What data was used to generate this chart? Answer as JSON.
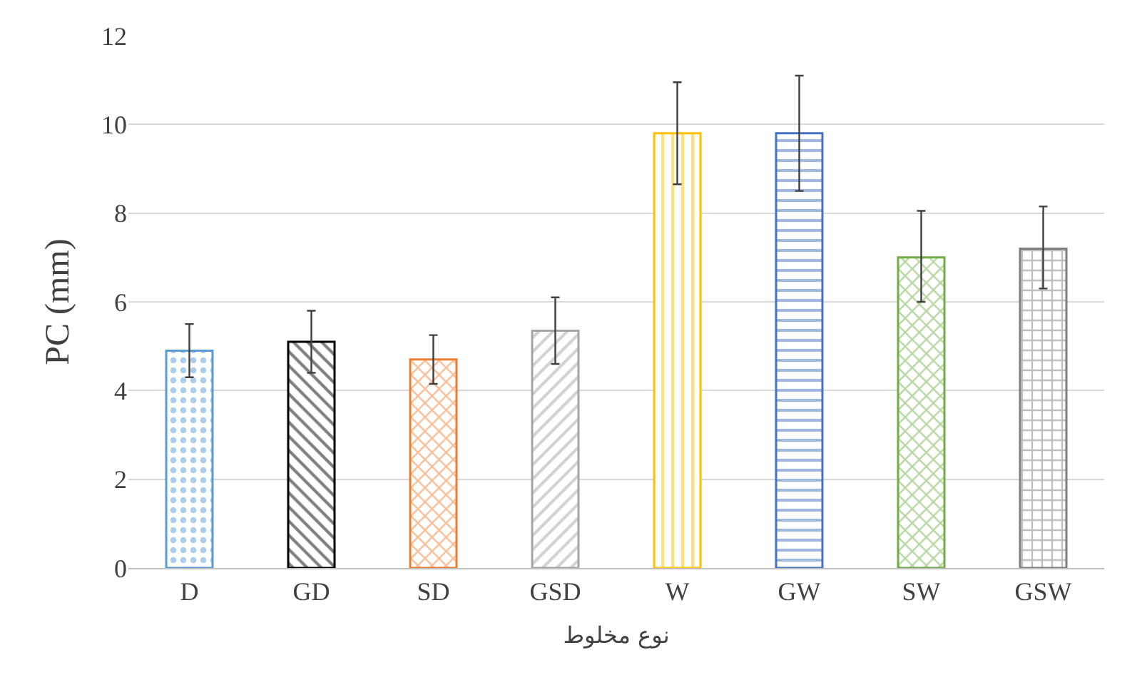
{
  "chart_data": {
    "type": "bar",
    "xlabel": "نوع مخلوط",
    "ylabel": "PC (mm)",
    "categories": [
      "D",
      "GD",
      "SD",
      "GSD",
      "W",
      "GW",
      "SW",
      "GSW"
    ],
    "values": [
      4.9,
      5.1,
      4.7,
      5.35,
      9.8,
      9.8,
      7.0,
      7.2
    ],
    "errors": [
      [
        4.3,
        5.5
      ],
      [
        4.4,
        5.8
      ],
      [
        4.15,
        5.25
      ],
      [
        4.6,
        6.1
      ],
      [
        8.65,
        10.95
      ],
      [
        8.5,
        11.1
      ],
      [
        6.0,
        8.05
      ],
      [
        6.3,
        8.15
      ]
    ],
    "colors": [
      "#5b9bd5",
      "#000000",
      "#ed7d31",
      "#a5a5a5",
      "#ffc000",
      "#4472c4",
      "#70ad47",
      "#7f7f7f"
    ],
    "ylim": [
      0,
      12
    ],
    "yticks": [
      0,
      2,
      4,
      6,
      8,
      10,
      12
    ],
    "grid": "y"
  }
}
